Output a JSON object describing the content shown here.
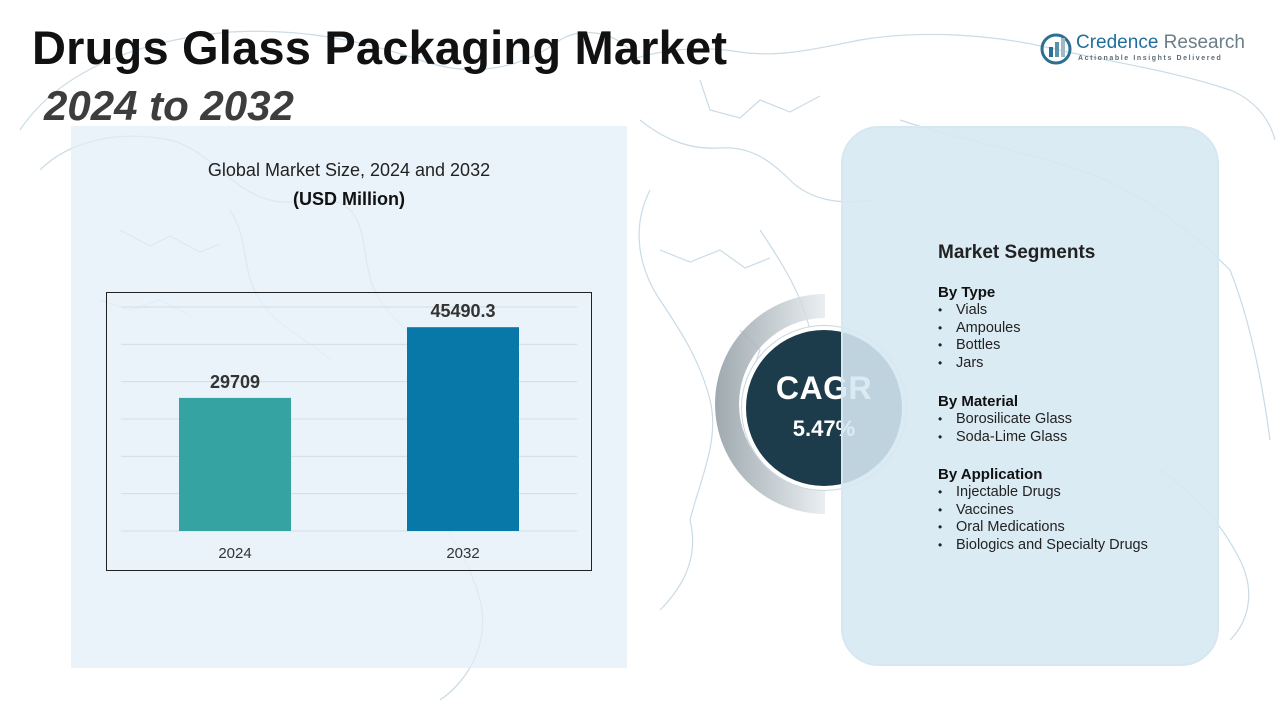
{
  "header": {
    "title": "Drugs Glass Packaging Market",
    "subtitle": "2024 to 2032"
  },
  "brand": {
    "name_part1": "Credence",
    "name_part2": " Research",
    "tagline": "Actionable Insights Delivered"
  },
  "chart": {
    "title": "Global Market Size, 2024 and 2032",
    "unit": "(USD Million)"
  },
  "chart_data": {
    "type": "bar",
    "categories": [
      "2024",
      "2032"
    ],
    "values": [
      29709,
      45490.3
    ],
    "value_labels": [
      "29709",
      "45490.3"
    ],
    "title": "Global Market Size, 2024 and 2032",
    "ylabel": "(USD Million)",
    "xlabel": "",
    "ylim": [
      0,
      50000
    ],
    "grid": true,
    "bar_colors": [
      "#35a3a2",
      "#0778a7"
    ]
  },
  "cagr": {
    "label": "CAGR",
    "value": "5.47%"
  },
  "segments": {
    "heading": "Market Segments",
    "groups": [
      {
        "title": "By Type",
        "items": [
          "Vials",
          "Ampoules",
          "Bottles",
          "Jars"
        ]
      },
      {
        "title": "By Material",
        "items": [
          "Borosilicate Glass",
          "Soda-Lime Glass"
        ]
      },
      {
        "title": "By Application",
        "items": [
          "Injectable Drugs",
          "Vaccines",
          "Oral Medications",
          "Biologics and Specialty Drugs"
        ]
      }
    ]
  },
  "colors": {
    "cagr_circle": "#1c3c4c",
    "panel_bg": "#e0eef7",
    "bar_2024": "#35a3a2",
    "bar_2032": "#0778a7"
  }
}
